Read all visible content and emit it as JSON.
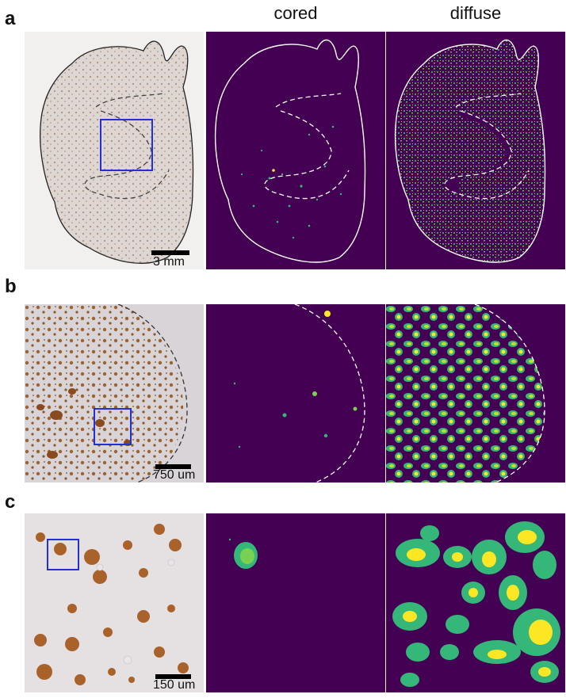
{
  "columns": {
    "cored": "cored",
    "diffuse": "diffuse"
  },
  "rows": [
    {
      "label": "a",
      "scale": "3 mm"
    },
    {
      "label": "b",
      "scale": "750 um"
    },
    {
      "label": "c",
      "scale": "150 um"
    }
  ],
  "colors": {
    "viridis_bg": "#440154",
    "viridis_green": "#35b779",
    "viridis_yellow": "#fde725",
    "stain_brown": "#8a5a2b",
    "tissue_bg": "#ddd6d2",
    "box_blue": "#2330d9"
  }
}
